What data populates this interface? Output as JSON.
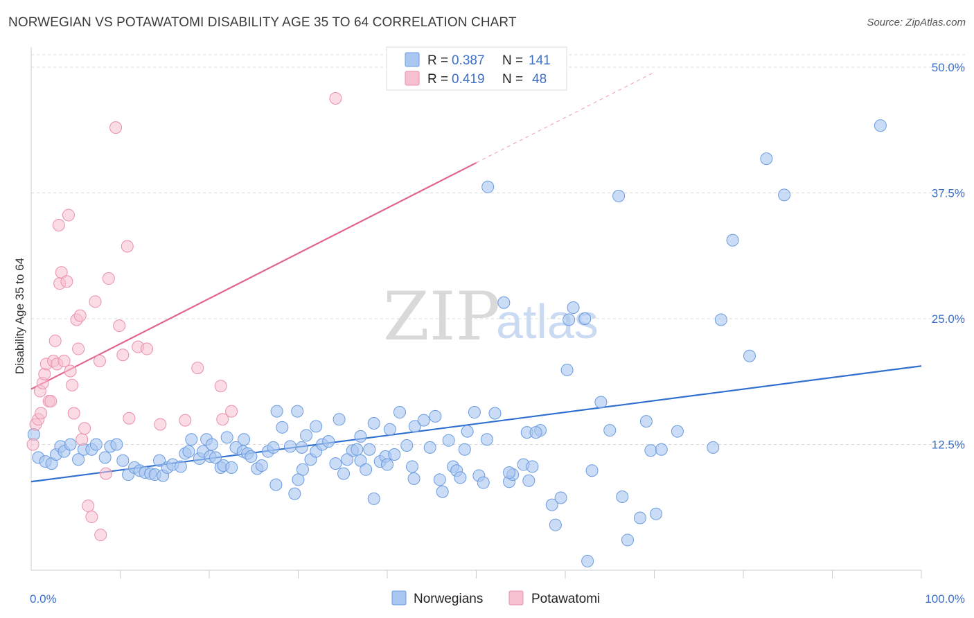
{
  "title": "NORWEGIAN VS POTAWATOMI DISABILITY AGE 35 TO 64 CORRELATION CHART",
  "source": "Source: ZipAtlas.com",
  "watermark": {
    "zip": "ZIP",
    "atlas": "atlas"
  },
  "legend": {
    "r_label": "R =",
    "n_label": "N =",
    "rows": [
      {
        "r": "0.387",
        "n": "141",
        "color": "#a9c7f0"
      },
      {
        "r": "0.419",
        "n": "48",
        "color": "#f5b8c9"
      }
    ]
  },
  "bottom_legend": [
    "Norwegians",
    "Potawatomi"
  ],
  "colors": {
    "blue_fill": "#a9c7f0",
    "blue_stroke": "#6a9be0",
    "blue_line": "#2f6fd0",
    "pink_fill": "#f7c0d0",
    "pink_stroke": "#ea8fab",
    "pink_line": "#e0668e"
  },
  "chart_data": {
    "type": "scatter",
    "ylabel": "Disability Age 35 to 64",
    "xlim": [
      0,
      100
    ],
    "ylim": [
      0,
      52
    ],
    "x_tick_labels": [
      "0.0%",
      "100.0%"
    ],
    "y_ticks": [
      12.5,
      25.0,
      37.5,
      50.0
    ],
    "y_tick_labels": [
      "12.5%",
      "25.0%",
      "37.5%",
      "50.0%"
    ],
    "grid": true,
    "series": [
      {
        "name": "Norwegians",
        "r": 0.387,
        "n": 141,
        "trend": {
          "x": [
            0,
            100
          ],
          "y": [
            8.8,
            20.3
          ]
        },
        "points": [
          [
            0.3,
            13.5
          ],
          [
            0.8,
            11.2
          ],
          [
            1.6,
            10.8
          ],
          [
            2.3,
            10.6
          ],
          [
            2.8,
            11.5
          ],
          [
            3.3,
            12.3
          ],
          [
            3.7,
            11.8
          ],
          [
            4.4,
            12.5
          ],
          [
            5.3,
            11.0
          ],
          [
            5.9,
            12.0
          ],
          [
            6.8,
            12.0
          ],
          [
            7.3,
            12.5
          ],
          [
            8.3,
            11.2
          ],
          [
            8.9,
            12.3
          ],
          [
            9.6,
            12.5
          ],
          [
            10.3,
            10.9
          ],
          [
            10.9,
            9.5
          ],
          [
            11.6,
            10.2
          ],
          [
            12.2,
            9.9
          ],
          [
            12.8,
            9.7
          ],
          [
            13.4,
            9.6
          ],
          [
            13.9,
            9.5
          ],
          [
            14.4,
            10.9
          ],
          [
            14.8,
            9.4
          ],
          [
            15.3,
            10.2
          ],
          [
            15.9,
            10.5
          ],
          [
            16.8,
            10.3
          ],
          [
            17.3,
            11.6
          ],
          [
            17.7,
            11.8
          ],
          [
            18.0,
            13.0
          ],
          [
            18.9,
            11.1
          ],
          [
            19.3,
            11.8
          ],
          [
            19.7,
            13.0
          ],
          [
            20.1,
            11.3
          ],
          [
            20.7,
            11.2
          ],
          [
            21.3,
            10.2
          ],
          [
            21.6,
            10.4
          ],
          [
            22.5,
            10.2
          ],
          [
            23.0,
            12.2
          ],
          [
            23.8,
            11.8
          ],
          [
            24.3,
            11.6
          ],
          [
            24.7,
            11.3
          ],
          [
            25.4,
            10.1
          ],
          [
            25.9,
            10.4
          ],
          [
            26.6,
            11.8
          ],
          [
            27.2,
            12.2
          ],
          [
            27.6,
            15.8
          ],
          [
            28.2,
            14.2
          ],
          [
            29.1,
            12.3
          ],
          [
            29.9,
            15.8
          ],
          [
            30.4,
            12.2
          ],
          [
            30.9,
            13.4
          ],
          [
            31.4,
            11.0
          ],
          [
            32.0,
            11.8
          ],
          [
            32.7,
            12.5
          ],
          [
            33.4,
            12.8
          ],
          [
            34.2,
            10.6
          ],
          [
            34.6,
            15.0
          ],
          [
            35.1,
            9.6
          ],
          [
            36.1,
            11.9
          ],
          [
            36.6,
            12.0
          ],
          [
            37.0,
            10.9
          ],
          [
            37.6,
            10.0
          ],
          [
            38.0,
            12.0
          ],
          [
            38.5,
            14.6
          ],
          [
            39.2,
            10.8
          ],
          [
            39.8,
            11.3
          ],
          [
            40.3,
            14.0
          ],
          [
            40.8,
            11.5
          ],
          [
            41.4,
            15.7
          ],
          [
            42.2,
            12.4
          ],
          [
            42.8,
            10.3
          ],
          [
            43.1,
            14.3
          ],
          [
            44.1,
            14.9
          ],
          [
            44.8,
            12.2
          ],
          [
            45.4,
            15.3
          ],
          [
            45.9,
            9.0
          ],
          [
            46.2,
            7.8
          ],
          [
            46.9,
            12.9
          ],
          [
            47.4,
            10.3
          ],
          [
            47.8,
            9.9
          ],
          [
            48.2,
            9.2
          ],
          [
            48.7,
            12.0
          ],
          [
            49.0,
            13.8
          ],
          [
            50.3,
            9.4
          ],
          [
            50.8,
            8.7
          ],
          [
            51.2,
            13.0
          ],
          [
            52.1,
            15.6
          ],
          [
            53.1,
            26.6
          ],
          [
            53.7,
            8.8
          ],
          [
            54.1,
            9.5
          ],
          [
            55.3,
            10.5
          ],
          [
            55.7,
            13.7
          ],
          [
            55.9,
            8.9
          ],
          [
            56.3,
            10.3
          ],
          [
            57.2,
            13.9
          ],
          [
            58.5,
            6.5
          ],
          [
            58.9,
            4.5
          ],
          [
            60.2,
            19.9
          ],
          [
            60.4,
            24.9
          ],
          [
            60.9,
            26.1
          ],
          [
            62.2,
            25.0
          ],
          [
            62.5,
            0.9
          ],
          [
            63.0,
            9.9
          ],
          [
            64.0,
            16.7
          ],
          [
            65.0,
            13.9
          ],
          [
            66.4,
            7.3
          ],
          [
            67.0,
            3.0
          ],
          [
            68.4,
            5.2
          ],
          [
            69.1,
            14.8
          ],
          [
            69.6,
            11.9
          ],
          [
            70.2,
            5.6
          ],
          [
            70.8,
            12.0
          ],
          [
            72.6,
            13.8
          ],
          [
            76.6,
            12.2
          ],
          [
            77.5,
            24.9
          ],
          [
            78.8,
            32.8
          ],
          [
            80.7,
            21.3
          ],
          [
            82.6,
            40.9
          ],
          [
            84.6,
            37.3
          ],
          [
            95.4,
            44.2
          ],
          [
            51.3,
            38.1
          ],
          [
            66.0,
            37.2
          ],
          [
            59.5,
            7.2
          ],
          [
            49.8,
            15.7
          ],
          [
            56.7,
            13.7
          ],
          [
            53.7,
            9.7
          ],
          [
            38.5,
            7.1
          ],
          [
            27.5,
            8.5
          ],
          [
            23.9,
            13.0
          ],
          [
            20.3,
            12.5
          ],
          [
            37.0,
            13.3
          ],
          [
            32.0,
            14.3
          ],
          [
            22.0,
            13.2
          ],
          [
            30.5,
            10.0
          ],
          [
            35.5,
            11.0
          ],
          [
            30.0,
            9.0
          ],
          [
            29.6,
            7.6
          ],
          [
            40.0,
            10.5
          ],
          [
            43.0,
            9.1
          ]
        ]
      },
      {
        "name": "Potawatomi",
        "r": 0.419,
        "n": 48,
        "trend": {
          "x": [
            0,
            50
          ],
          "y": [
            18.0,
            40.5
          ]
        },
        "trend_dashed": {
          "x": [
            50,
            70
          ],
          "y": [
            40.5,
            49.5
          ]
        },
        "points": [
          [
            0.2,
            12.5
          ],
          [
            0.5,
            14.5
          ],
          [
            0.8,
            15.0
          ],
          [
            1.0,
            17.8
          ],
          [
            1.1,
            15.6
          ],
          [
            1.3,
            18.6
          ],
          [
            1.5,
            19.5
          ],
          [
            1.7,
            20.5
          ],
          [
            2.0,
            16.8
          ],
          [
            2.2,
            16.8
          ],
          [
            2.5,
            20.8
          ],
          [
            2.7,
            22.8
          ],
          [
            2.9,
            20.5
          ],
          [
            3.1,
            34.3
          ],
          [
            3.2,
            28.5
          ],
          [
            3.4,
            29.6
          ],
          [
            3.7,
            20.8
          ],
          [
            4.0,
            28.7
          ],
          [
            4.2,
            35.3
          ],
          [
            4.4,
            19.8
          ],
          [
            4.6,
            18.4
          ],
          [
            4.8,
            15.6
          ],
          [
            5.1,
            24.9
          ],
          [
            5.3,
            22.0
          ],
          [
            5.5,
            25.3
          ],
          [
            5.7,
            13.0
          ],
          [
            6.0,
            14.1
          ],
          [
            6.4,
            6.4
          ],
          [
            6.8,
            5.3
          ],
          [
            7.2,
            26.7
          ],
          [
            7.7,
            20.8
          ],
          [
            7.8,
            3.5
          ],
          [
            8.4,
            9.6
          ],
          [
            8.7,
            29.0
          ],
          [
            9.5,
            44.0
          ],
          [
            9.9,
            24.3
          ],
          [
            10.3,
            21.4
          ],
          [
            10.8,
            32.2
          ],
          [
            11.0,
            15.1
          ],
          [
            12.0,
            22.2
          ],
          [
            13.0,
            22.0
          ],
          [
            14.5,
            14.5
          ],
          [
            17.3,
            14.9
          ],
          [
            18.7,
            20.1
          ],
          [
            21.3,
            18.3
          ],
          [
            21.5,
            15.0
          ],
          [
            22.5,
            15.8
          ],
          [
            34.2,
            46.9
          ]
        ]
      }
    ]
  }
}
